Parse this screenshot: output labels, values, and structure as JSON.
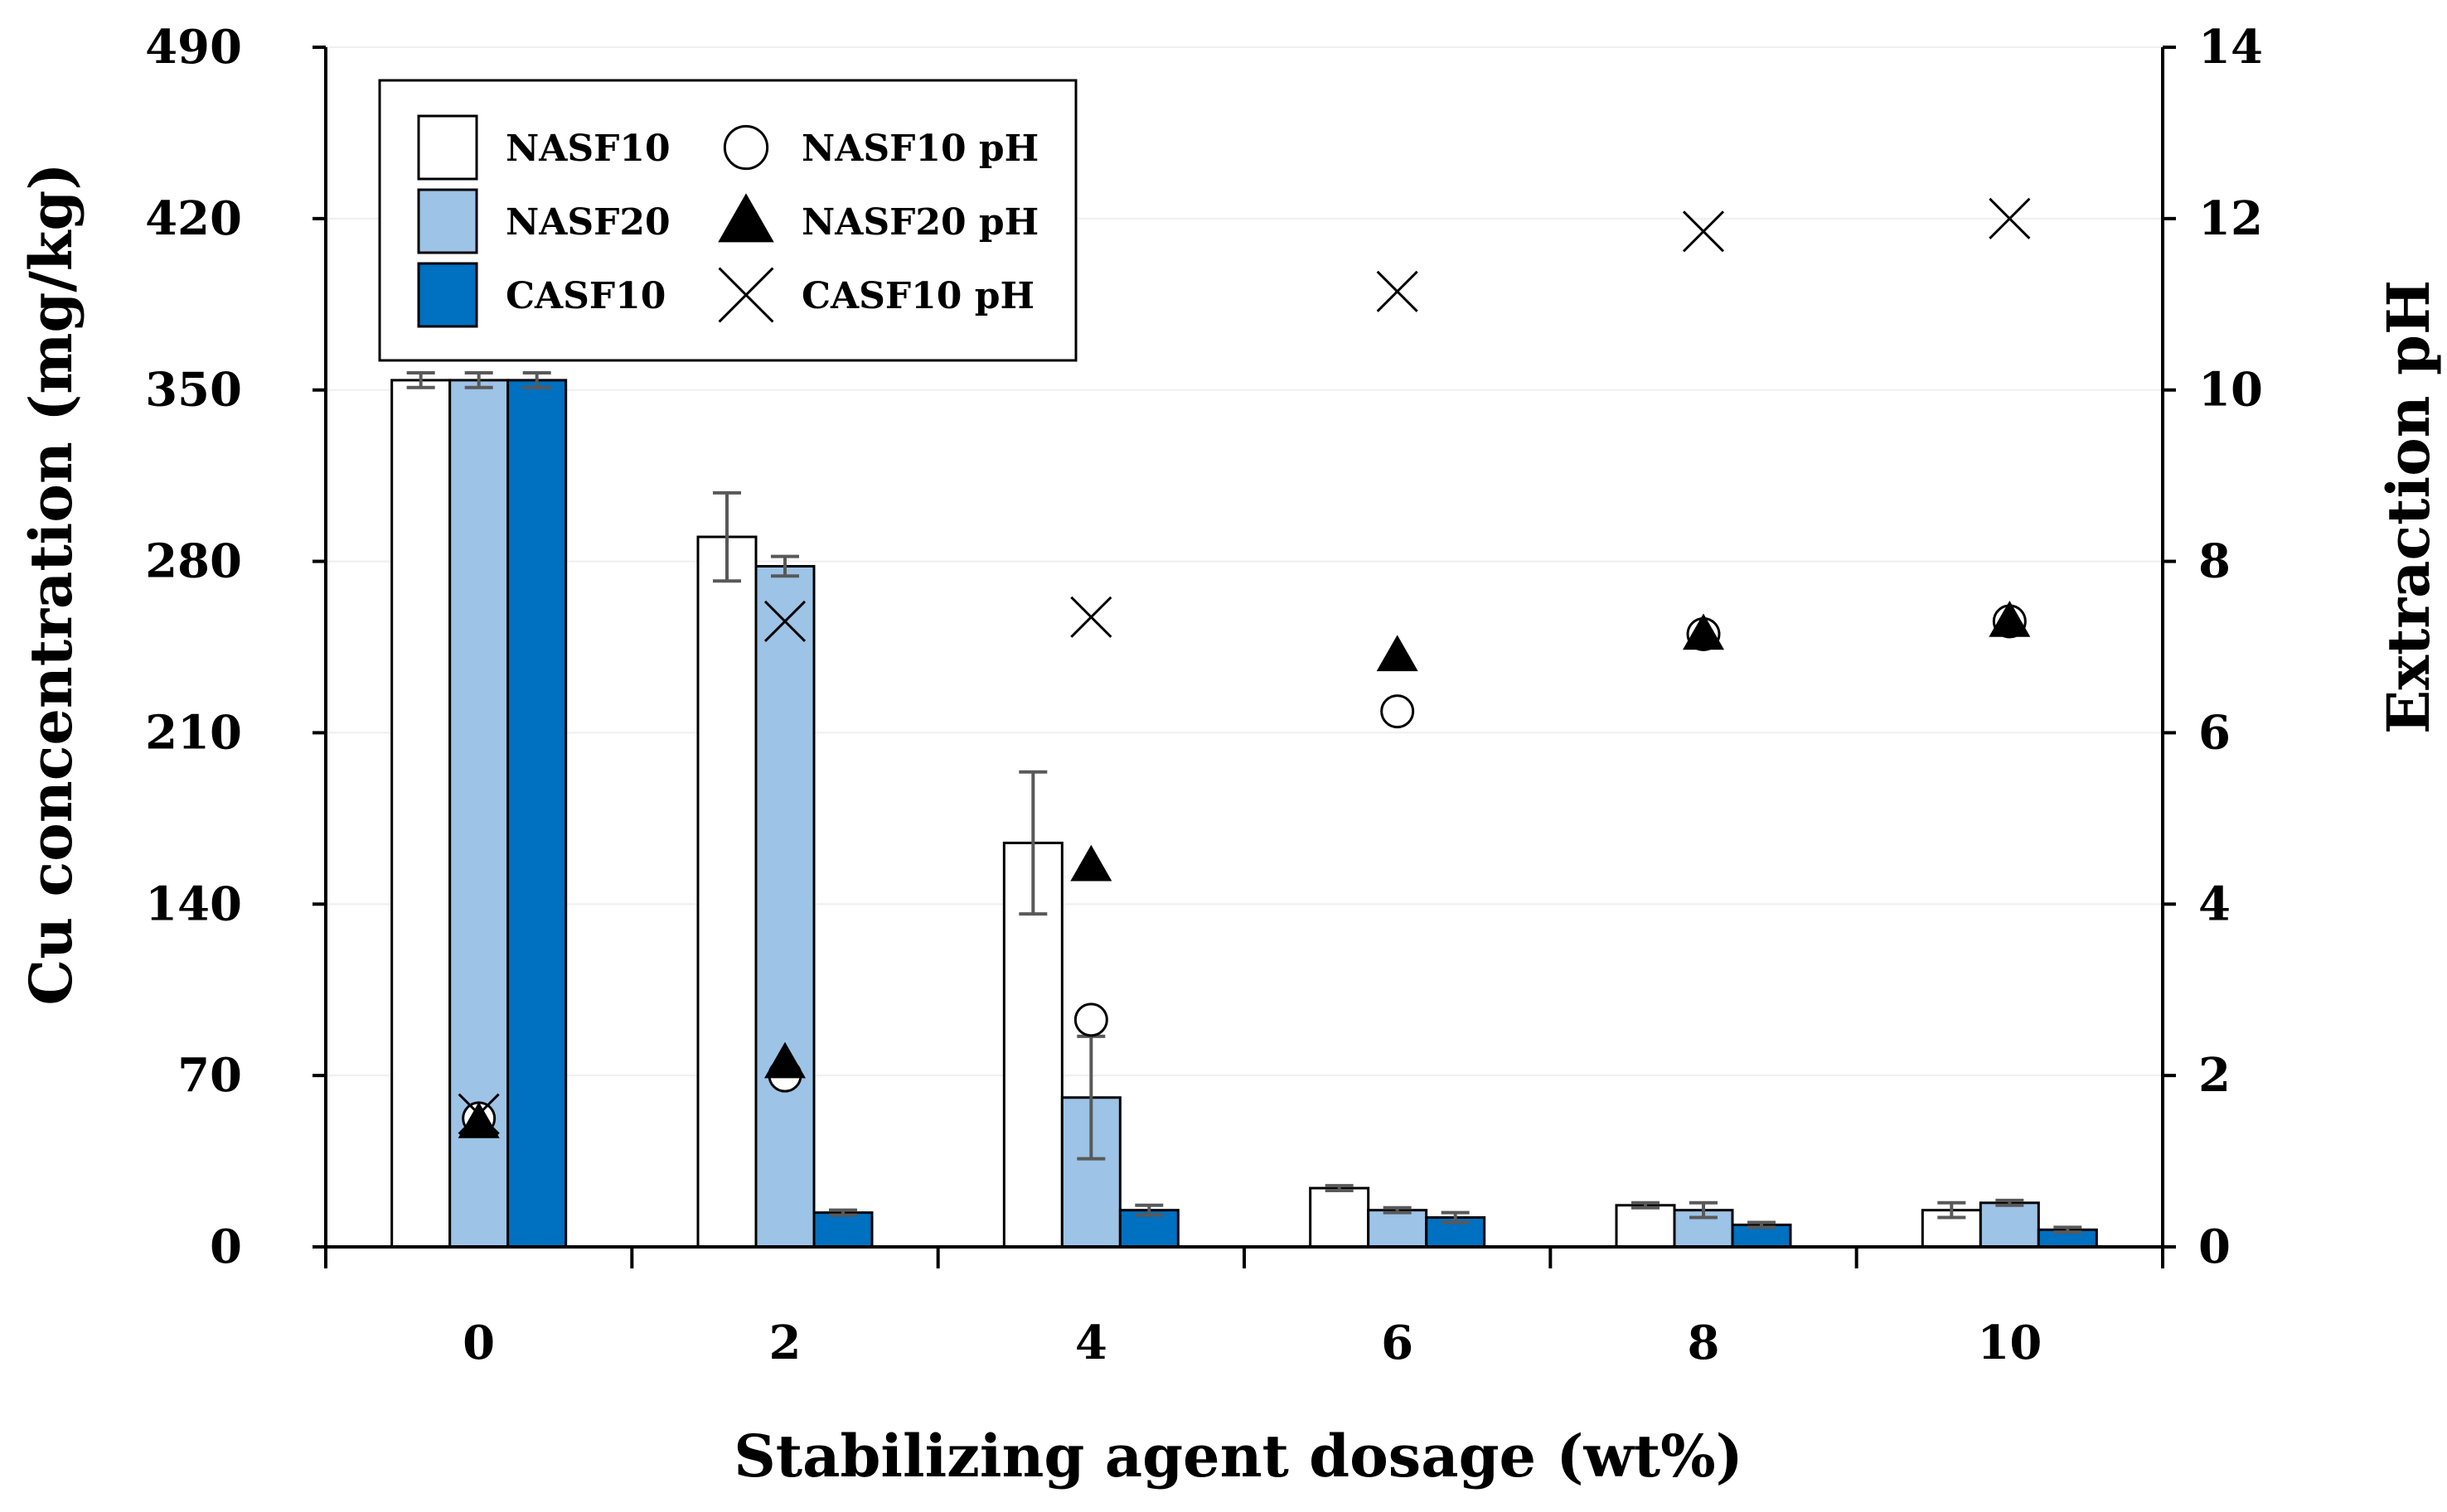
{
  "chart_data": {
    "type": "bar",
    "xlabel": "Stabilizing agent dosage (wt%)",
    "ylabel": "Cu concentration (mg/kg)",
    "y2label": "Extraction pH",
    "categories": [
      "0",
      "2",
      "4",
      "6",
      "8",
      "10"
    ],
    "ylim": [
      0,
      490
    ],
    "y_ticks": [
      "0",
      "70",
      "140",
      "210",
      "280",
      "350",
      "420",
      "490"
    ],
    "y2lim": [
      0,
      14
    ],
    "y2_ticks": [
      "0",
      "2",
      "4",
      "6",
      "8",
      "10",
      "12",
      "14"
    ],
    "grid": true,
    "legend_position": "top-left",
    "bar_series": [
      {
        "name": "NASF10",
        "color": "#ffffff",
        "values": [
          354,
          290,
          165,
          24,
          17,
          15
        ],
        "errors": [
          3,
          18,
          29,
          1,
          1,
          3
        ]
      },
      {
        "name": "NASF20",
        "color": "#9dc3e6",
        "values": [
          354,
          278,
          61,
          15,
          15,
          18
        ],
        "errors": [
          3,
          4,
          25,
          1,
          3,
          1
        ]
      },
      {
        "name": "CASF10",
        "color": "#0070c0",
        "values": [
          354,
          14,
          15,
          12,
          9,
          7
        ],
        "errors": [
          3,
          1,
          2,
          2,
          1,
          1
        ]
      }
    ],
    "ph_series": [
      {
        "name": "NASF10 pH",
        "marker": "circle",
        "values": [
          1.5,
          2.0,
          2.65,
          6.25,
          7.15,
          7.3
        ]
      },
      {
        "name": "NASF20 pH",
        "marker": "triangle",
        "values": [
          1.45,
          2.15,
          4.45,
          6.9,
          7.15,
          7.3
        ]
      },
      {
        "name": "CASF10 pH",
        "marker": "cross",
        "values": [
          1.55,
          7.3,
          7.35,
          11.15,
          11.85,
          12.0
        ]
      }
    ]
  }
}
